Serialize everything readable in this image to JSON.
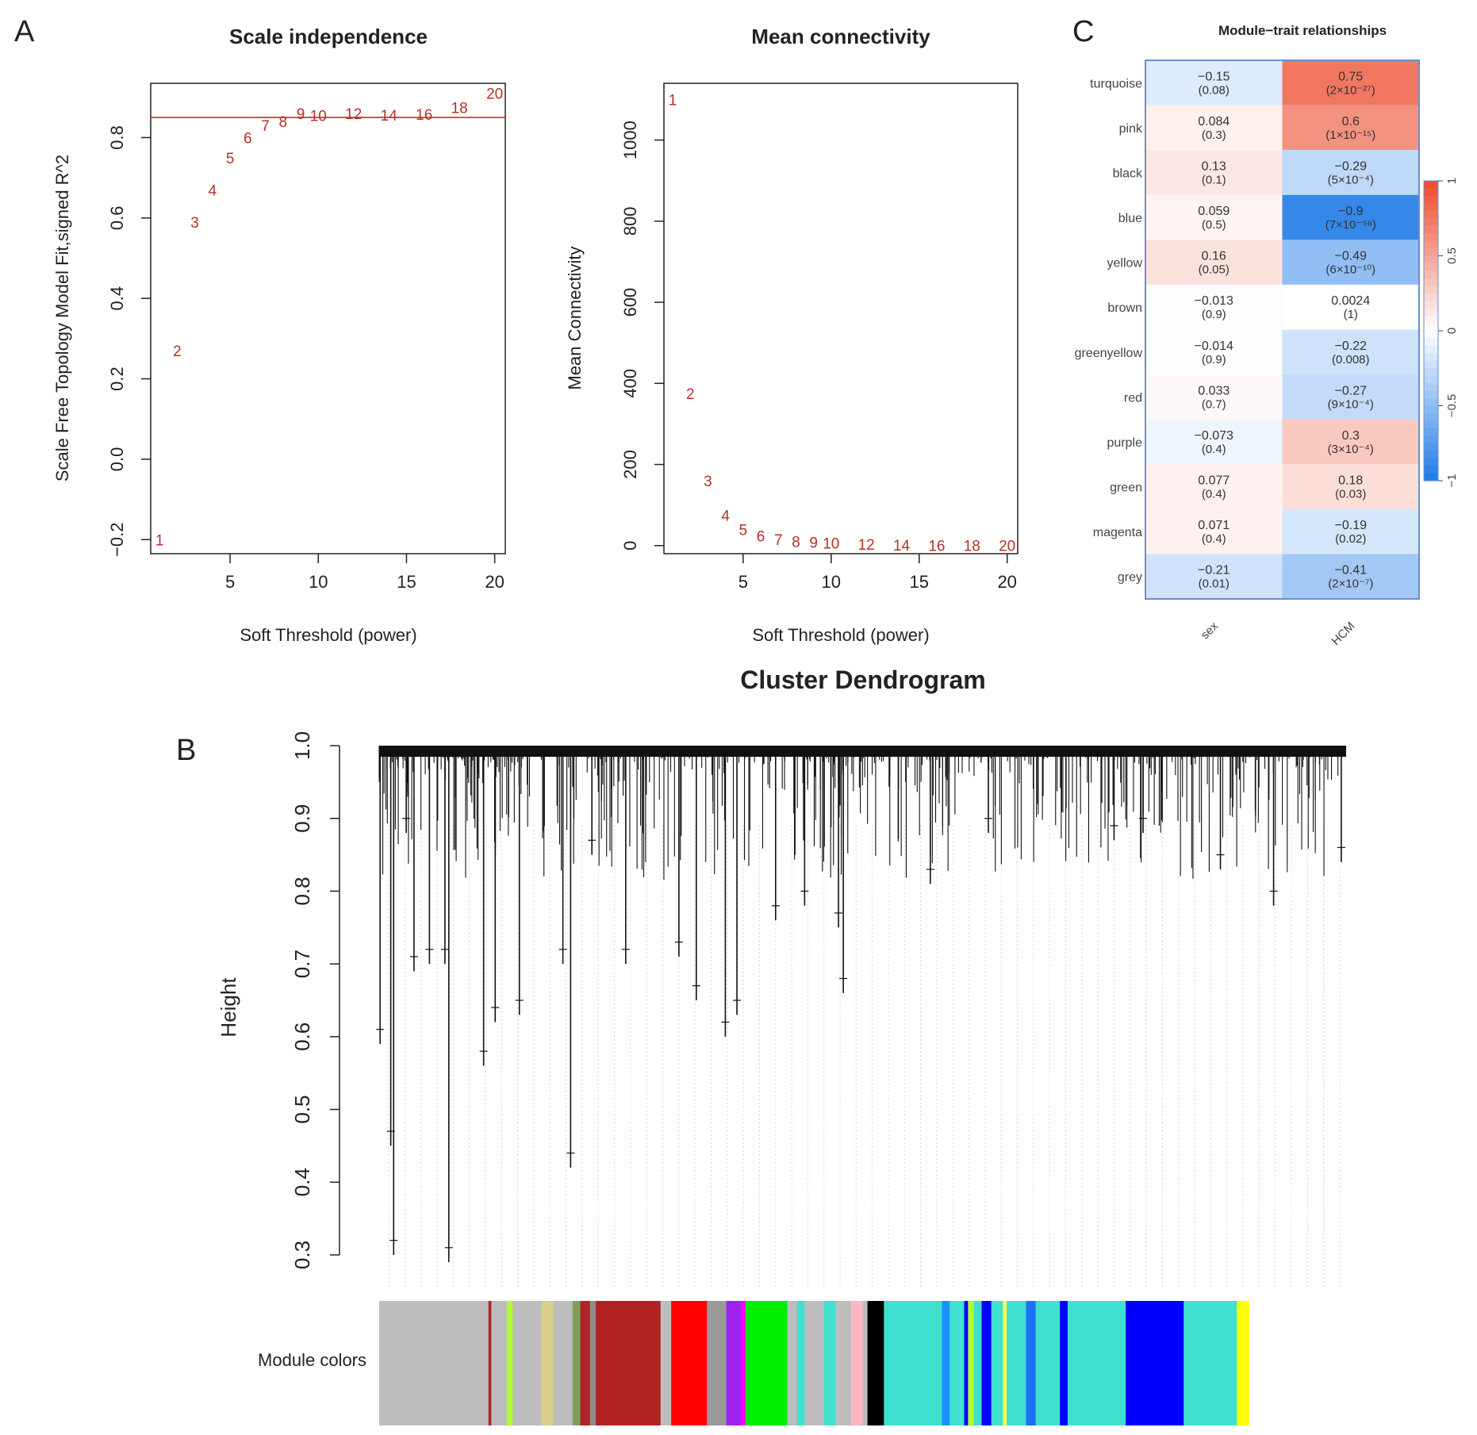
{
  "panel_letters": {
    "a": "A",
    "b": "B",
    "c": "C"
  },
  "colors": {
    "point": "#b5302b",
    "threshold_line": "#c0302b",
    "axis": "#222222",
    "heat_neg": "#1f7ae8",
    "heat_mid": "#ffffff",
    "heat_pos": "#ec4a2c"
  },
  "chart_data": [
    {
      "id": "scale_independence",
      "type": "scatter",
      "title": "Scale independence",
      "xlabel": "Soft Threshold (power)",
      "ylabel": "Scale Free Topology Model Fit,signed R^2",
      "xlim": [
        0.5,
        20.6
      ],
      "ylim": [
        -0.235,
        0.935
      ],
      "xticks": [
        5,
        10,
        15,
        20
      ],
      "yticks": [
        -0.2,
        0.0,
        0.2,
        0.4,
        0.6,
        0.8
      ],
      "ytick_labels": [
        "−0.2",
        "0.0",
        "0.2",
        "0.4",
        "0.6",
        "0.8"
      ],
      "hline": 0.85,
      "points": [
        {
          "x": 1,
          "y": -0.2,
          "label": "1"
        },
        {
          "x": 2,
          "y": 0.27,
          "label": "2"
        },
        {
          "x": 3,
          "y": 0.59,
          "label": "3"
        },
        {
          "x": 4,
          "y": 0.67,
          "label": "4"
        },
        {
          "x": 5,
          "y": 0.75,
          "label": "5"
        },
        {
          "x": 6,
          "y": 0.8,
          "label": "6"
        },
        {
          "x": 7,
          "y": 0.83,
          "label": "7"
        },
        {
          "x": 8,
          "y": 0.84,
          "label": "8"
        },
        {
          "x": 9,
          "y": 0.86,
          "label": "9"
        },
        {
          "x": 10,
          "y": 0.855,
          "label": "10"
        },
        {
          "x": 12,
          "y": 0.86,
          "label": "12"
        },
        {
          "x": 14,
          "y": 0.856,
          "label": "14"
        },
        {
          "x": 16,
          "y": 0.858,
          "label": "16"
        },
        {
          "x": 18,
          "y": 0.875,
          "label": "18"
        },
        {
          "x": 20,
          "y": 0.91,
          "label": "20"
        }
      ]
    },
    {
      "id": "mean_connectivity",
      "type": "scatter",
      "title": "Mean connectivity",
      "xlabel": "Soft Threshold (power)",
      "ylabel": "Mean Connectivity",
      "xlim": [
        0.5,
        20.6
      ],
      "ylim": [
        -20,
        1140
      ],
      "xticks": [
        5,
        10,
        15,
        20
      ],
      "yticks": [
        0,
        200,
        400,
        600,
        800,
        1000
      ],
      "points": [
        {
          "x": 1,
          "y": 1100,
          "label": "1"
        },
        {
          "x": 2,
          "y": 375,
          "label": "2"
        },
        {
          "x": 3,
          "y": 160,
          "label": "3"
        },
        {
          "x": 4,
          "y": 75,
          "label": "4"
        },
        {
          "x": 5,
          "y": 40,
          "label": "5"
        },
        {
          "x": 6,
          "y": 24,
          "label": "6"
        },
        {
          "x": 7,
          "y": 15,
          "label": "7"
        },
        {
          "x": 8,
          "y": 10,
          "label": "8"
        },
        {
          "x": 9,
          "y": 8,
          "label": "9"
        },
        {
          "x": 10,
          "y": 6,
          "label": "10"
        },
        {
          "x": 12,
          "y": 3,
          "label": "12"
        },
        {
          "x": 14,
          "y": 2,
          "label": "14"
        },
        {
          "x": 16,
          "y": 1,
          "label": "16"
        },
        {
          "x": 18,
          "y": 0.8,
          "label": "18"
        },
        {
          "x": 20,
          "y": 0.5,
          "label": "20"
        }
      ]
    },
    {
      "id": "module_trait",
      "type": "heatmap",
      "title": "Module−trait relationships",
      "rows": [
        "turquoise",
        "pink",
        "black",
        "blue",
        "yellow",
        "brown",
        "greenyellow",
        "red",
        "purple",
        "green",
        "magenta",
        "grey"
      ],
      "columns": [
        "sex",
        "HCM"
      ],
      "cells": [
        [
          {
            "value": -0.15,
            "label": "−0.15",
            "p": "(0.08)"
          },
          {
            "value": 0.75,
            "label": "0.75",
            "p": "(2×10⁻²⁷)"
          }
        ],
        [
          {
            "value": 0.084,
            "label": "0.084",
            "p": "(0.3)"
          },
          {
            "value": 0.6,
            "label": "0.6",
            "p": "(1×10⁻¹⁵)"
          }
        ],
        [
          {
            "value": 0.13,
            "label": "0.13",
            "p": "(0.1)"
          },
          {
            "value": -0.29,
            "label": "−0.29",
            "p": "(5×10⁻⁴)"
          }
        ],
        [
          {
            "value": 0.059,
            "label": "0.059",
            "p": "(0.5)"
          },
          {
            "value": -0.9,
            "label": "−0.9",
            "p": "(7×10⁻⁵⁶)"
          }
        ],
        [
          {
            "value": 0.16,
            "label": "0.16",
            "p": "(0.05)"
          },
          {
            "value": -0.49,
            "label": "−0.49",
            "p": "(6×10⁻¹⁰)"
          }
        ],
        [
          {
            "value": -0.013,
            "label": "−0.013",
            "p": "(0.9)"
          },
          {
            "value": 0.0024,
            "label": "0.0024",
            "p": "(1)"
          }
        ],
        [
          {
            "value": -0.014,
            "label": "−0.014",
            "p": "(0.9)"
          },
          {
            "value": -0.22,
            "label": "−0.22",
            "p": "(0.008)"
          }
        ],
        [
          {
            "value": 0.033,
            "label": "0.033",
            "p": "(0.7)"
          },
          {
            "value": -0.27,
            "label": "−0.27",
            "p": "(9×10⁻⁴)"
          }
        ],
        [
          {
            "value": -0.073,
            "label": "−0.073",
            "p": "(0.4)"
          },
          {
            "value": 0.3,
            "label": "0.3",
            "p": "(3×10⁻⁴)"
          }
        ],
        [
          {
            "value": 0.077,
            "label": "0.077",
            "p": "(0.4)"
          },
          {
            "value": 0.18,
            "label": "0.18",
            "p": "(0.03)"
          }
        ],
        [
          {
            "value": 0.071,
            "label": "0.071",
            "p": "(0.4)"
          },
          {
            "value": -0.19,
            "label": "−0.19",
            "p": "(0.02)"
          }
        ],
        [
          {
            "value": -0.21,
            "label": "−0.21",
            "p": "(0.01)"
          },
          {
            "value": -0.41,
            "label": "−0.41",
            "p": "(2×10⁻⁷)"
          }
        ]
      ],
      "colorbar": {
        "range": [
          -1,
          1
        ],
        "ticks": [
          1,
          0.5,
          0,
          -0.5,
          -1
        ],
        "tick_labels": [
          "1",
          "0.5",
          "0",
          "−0.5",
          "−1"
        ]
      }
    },
    {
      "id": "cluster_dendrogram",
      "type": "dendrogram",
      "title": "Cluster Dendrogram",
      "ylabel": "Height",
      "ylim": [
        0.3,
        1.0
      ],
      "yticks": [
        0.3,
        0.4,
        0.5,
        0.6,
        0.7,
        0.8,
        0.9,
        1.0
      ],
      "color_bar_label": "Module colors",
      "deep_branches": [
        {
          "x": 0.001,
          "height": 0.59
        },
        {
          "x": 0.012,
          "height": 0.45
        },
        {
          "x": 0.015,
          "height": 0.3
        },
        {
          "x": 0.028,
          "height": 0.88
        },
        {
          "x": 0.036,
          "height": 0.69
        },
        {
          "x": 0.052,
          "height": 0.7
        },
        {
          "x": 0.068,
          "height": 0.7
        },
        {
          "x": 0.072,
          "height": 0.29
        },
        {
          "x": 0.108,
          "height": 0.56
        },
        {
          "x": 0.12,
          "height": 0.62
        },
        {
          "x": 0.145,
          "height": 0.63
        },
        {
          "x": 0.19,
          "height": 0.7
        },
        {
          "x": 0.198,
          "height": 0.42
        },
        {
          "x": 0.22,
          "height": 0.85
        },
        {
          "x": 0.255,
          "height": 0.7
        },
        {
          "x": 0.31,
          "height": 0.71
        },
        {
          "x": 0.328,
          "height": 0.65
        },
        {
          "x": 0.358,
          "height": 0.6
        },
        {
          "x": 0.37,
          "height": 0.63
        },
        {
          "x": 0.41,
          "height": 0.76
        },
        {
          "x": 0.44,
          "height": 0.78
        },
        {
          "x": 0.475,
          "height": 0.75
        },
        {
          "x": 0.48,
          "height": 0.66
        },
        {
          "x": 0.57,
          "height": 0.81
        },
        {
          "x": 0.63,
          "height": 0.88
        },
        {
          "x": 0.76,
          "height": 0.87
        },
        {
          "x": 0.79,
          "height": 0.88
        },
        {
          "x": 0.87,
          "height": 0.83
        },
        {
          "x": 0.925,
          "height": 0.78
        },
        {
          "x": 0.995,
          "height": 0.84
        }
      ],
      "module_segments": [
        {
          "color": "#bdbdbd",
          "width": 0.113
        },
        {
          "color": "#b22222",
          "width": 0.003
        },
        {
          "color": "#bdbdbd",
          "width": 0.016
        },
        {
          "color": "#adff2f",
          "width": 0.006
        },
        {
          "color": "#bdbdbd",
          "width": 0.03
        },
        {
          "color": "#d8d08a",
          "width": 0.012
        },
        {
          "color": "#bdbdbd",
          "width": 0.02
        },
        {
          "color": "#7fa05a",
          "width": 0.008
        },
        {
          "color": "#b22222",
          "width": 0.01
        },
        {
          "color": "#8c8c8c",
          "width": 0.006
        },
        {
          "color": "#b22222",
          "width": 0.067
        },
        {
          "color": "#bdbdbd",
          "width": 0.011
        },
        {
          "color": "#ff0000",
          "width": 0.037
        },
        {
          "color": "#9a9a9a",
          "width": 0.02
        },
        {
          "color": "#a020f0",
          "width": 0.015
        },
        {
          "color": "#ff00ff",
          "width": 0.005
        },
        {
          "color": "#00ee00",
          "width": 0.043
        },
        {
          "color": "#bdbdbd",
          "width": 0.01
        },
        {
          "color": "#40e0d0",
          "width": 0.008
        },
        {
          "color": "#bdbdbd",
          "width": 0.02
        },
        {
          "color": "#40e0d0",
          "width": 0.012
        },
        {
          "color": "#bdbdbd",
          "width": 0.016
        },
        {
          "color": "#ffb6c1",
          "width": 0.012
        },
        {
          "color": "#bdbdbd",
          "width": 0.005
        },
        {
          "color": "#000000",
          "width": 0.017
        },
        {
          "color": "#40e0d0",
          "width": 0.06
        },
        {
          "color": "#1e90ff",
          "width": 0.008
        },
        {
          "color": "#40e0d0",
          "width": 0.015
        },
        {
          "color": "#0000ff",
          "width": 0.004
        },
        {
          "color": "#adff2f",
          "width": 0.006
        },
        {
          "color": "#40e0d0",
          "width": 0.008
        },
        {
          "color": "#0000ff",
          "width": 0.01
        },
        {
          "color": "#40e0d0",
          "width": 0.012
        },
        {
          "color": "#ffff55",
          "width": 0.004
        },
        {
          "color": "#40e0d0",
          "width": 0.02
        },
        {
          "color": "#1e6fff",
          "width": 0.01
        },
        {
          "color": "#40e0d0",
          "width": 0.025
        },
        {
          "color": "#0000ff",
          "width": 0.008
        },
        {
          "color": "#40e0d0",
          "width": 0.06
        },
        {
          "color": "#0000ff",
          "width": 0.06
        },
        {
          "color": "#40e0d0",
          "width": 0.055
        },
        {
          "color": "#ffff00",
          "width": 0.012
        }
      ]
    }
  ]
}
